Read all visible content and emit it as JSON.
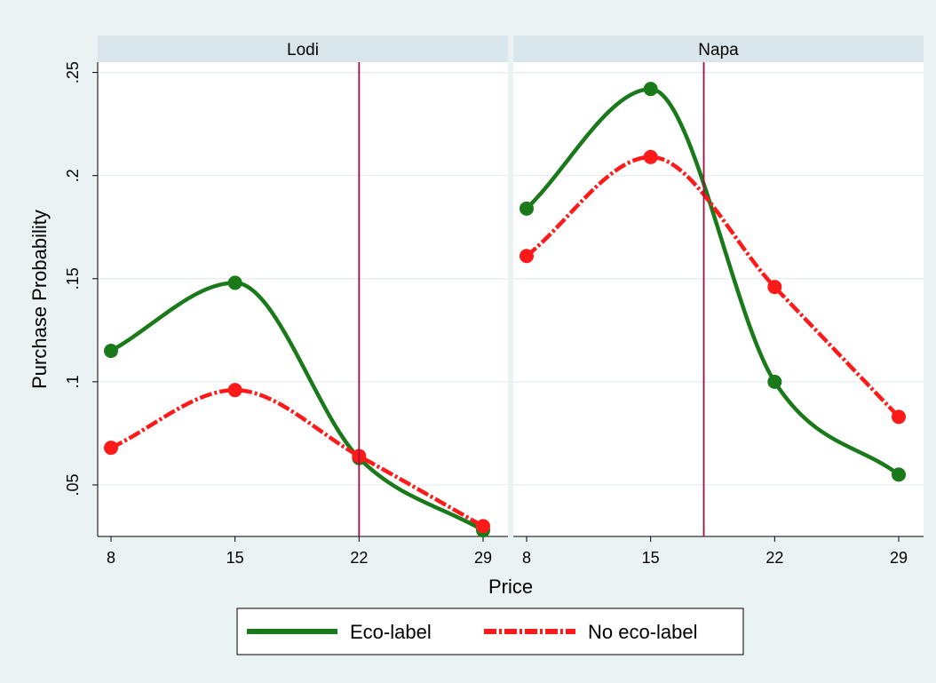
{
  "chart_data": {
    "type": "line",
    "ylabel": "Purchase Probability",
    "xlabel": "Price",
    "x": [
      8,
      15,
      22,
      29
    ],
    "xlim": [
      8,
      29
    ],
    "ylim": [
      0.025,
      0.255
    ],
    "yticks": [
      0.05,
      0.1,
      0.15,
      0.2,
      0.25
    ],
    "ytick_labels": [
      ".05",
      ".1",
      ".15",
      ".2",
      ".25"
    ],
    "xticks": [
      8,
      15,
      22,
      29
    ],
    "grid": true,
    "legend_placement": "bottom",
    "panels": [
      {
        "title": "Lodi",
        "vline_x": 22,
        "series": [
          {
            "name": "Eco-label",
            "color": "#1a7a1a",
            "values": [
              0.115,
              0.148,
              0.063,
              0.028
            ]
          },
          {
            "name": "No eco-label",
            "color": "#ff1a1a",
            "values": [
              0.068,
              0.096,
              0.064,
              0.03
            ]
          }
        ]
      },
      {
        "title": "Napa",
        "vline_x": 18,
        "series": [
          {
            "name": "Eco-label",
            "color": "#1a7a1a",
            "values": [
              0.184,
              0.242,
              0.1,
              0.055
            ]
          },
          {
            "name": "No eco-label",
            "color": "#ff1a1a",
            "values": [
              0.161,
              0.209,
              0.146,
              0.083
            ]
          }
        ]
      }
    ],
    "legend": [
      {
        "name": "Eco-label",
        "color": "#1a7a1a"
      },
      {
        "name": "No eco-label",
        "color": "#ff1a1a"
      }
    ]
  }
}
